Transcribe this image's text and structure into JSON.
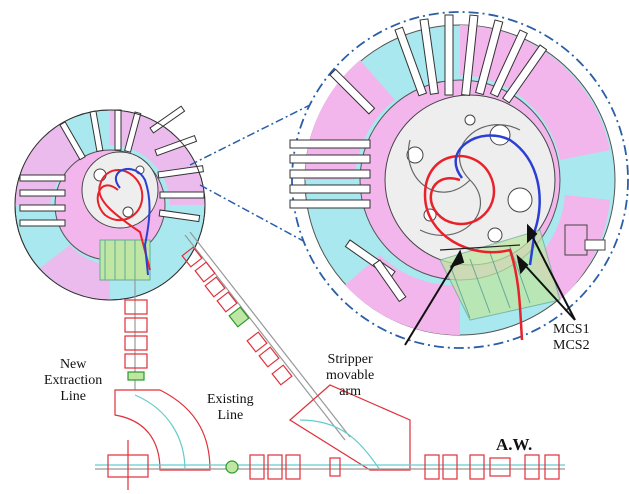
{
  "labels": {
    "new_extraction": [
      "New",
      "Extraction",
      "Line"
    ],
    "existing_line": [
      "Existing",
      "Line"
    ],
    "stripper": [
      "Stripper",
      "movable",
      "arm"
    ],
    "mcs": [
      "MCS1",
      "MCS2"
    ],
    "aw": "A.W."
  },
  "colors": {
    "cyan": "#a8e8ee",
    "magenta": "#f3b6ec",
    "beam_red": "#e8222b",
    "beam_blue": "#2b3fd4",
    "magnet_outline": "#e0303a",
    "callout": "#2a5fa8",
    "extraction_green": "#bfe6a3"
  },
  "icons": [
    "cyclotron-overview",
    "cyclotron-zoom-circle",
    "beam-trajectory",
    "dipole-magnet",
    "quadrupole-magnet"
  ]
}
